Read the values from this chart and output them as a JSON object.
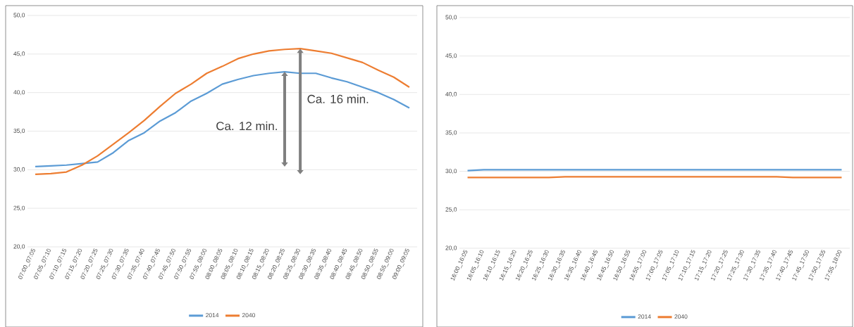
{
  "chart_data": [
    {
      "type": "line",
      "categories": [
        "07:00_07:05",
        "07:05_07:10",
        "07:10_07:15",
        "07:15_07:20",
        "07:20_07:25",
        "07:25_07:30",
        "07:30_07:35",
        "07:35_07:40",
        "07:40_07:45",
        "07:45_07:50",
        "07:50_07:55",
        "07:55_08:00",
        "08:00_08:05",
        "08:05_08:10",
        "08:10_08:15",
        "08:15_08:20",
        "08:20_08:25",
        "08:25_08:30",
        "08:30_08:35",
        "08:35_08:40",
        "08:40_08:45",
        "08:45_08:50",
        "08:50_08:55",
        "08:55_09:00",
        "09:00_09:05"
      ],
      "series": [
        {
          "name": "2014",
          "color": "#5b9bd5",
          "values": [
            30.4,
            30.5,
            30.6,
            30.8,
            31.0,
            32.2,
            33.8,
            34.8,
            36.3,
            37.4,
            38.9,
            39.9,
            41.1,
            41.7,
            42.2,
            42.5,
            42.7,
            42.5,
            42.5,
            41.9,
            41.4,
            40.7,
            40.0,
            39.1,
            38.0
          ]
        },
        {
          "name": "2040",
          "color": "#ed7d31",
          "values": [
            29.4,
            29.5,
            29.7,
            30.6,
            31.8,
            33.3,
            34.8,
            36.4,
            38.2,
            39.9,
            41.1,
            42.5,
            43.4,
            44.4,
            45.0,
            45.4,
            45.6,
            45.7,
            45.4,
            45.1,
            44.5,
            43.9,
            42.9,
            42.0,
            40.7
          ]
        }
      ],
      "ylim": [
        20,
        50
      ],
      "yticks": [
        {
          "value": 20,
          "label": "20,0"
        },
        {
          "value": 25,
          "label": "25,0"
        },
        {
          "value": 30,
          "label": "30,0"
        },
        {
          "value": 35,
          "label": "35,0"
        },
        {
          "value": 40,
          "label": "40,0"
        },
        {
          "value": 45,
          "label": "45,0"
        },
        {
          "value": 50,
          "label": "50,0"
        }
      ],
      "grid": "y",
      "legend": "bottom",
      "marker": "none",
      "line_style": "solid",
      "annotations": [
        "Ca. 12 min.",
        "Ca. 16 min."
      ]
    },
    {
      "type": "line",
      "categories": [
        "16:00_16:05",
        "16:05_16:10",
        "16:10_16:15",
        "16:15_16:20",
        "16:20_16:25",
        "16:25_16:30",
        "16:30_16:35",
        "16:35_16:40",
        "16:40_16:45",
        "16:45_16:50",
        "16:50_16:55",
        "16:55_17:00",
        "17:00_17:05",
        "17:05_17:10",
        "17:10_17:15",
        "17:15_17:20",
        "17:20_17:25",
        "17:25_17:30",
        "17:30_17:35",
        "17:35_17:40",
        "17:40_17:45",
        "17:45_17:50",
        "17:50_17:55",
        "17:55_18:00"
      ],
      "series": [
        {
          "name": "2014",
          "color": "#5b9bd5",
          "values": [
            30.1,
            30.2,
            30.2,
            30.2,
            30.2,
            30.2,
            30.2,
            30.2,
            30.2,
            30.2,
            30.2,
            30.2,
            30.2,
            30.2,
            30.2,
            30.2,
            30.2,
            30.2,
            30.2,
            30.2,
            30.2,
            30.2,
            30.2,
            30.2
          ]
        },
        {
          "name": "2040",
          "color": "#ed7d31",
          "values": [
            29.2,
            29.2,
            29.2,
            29.2,
            29.2,
            29.2,
            29.3,
            29.3,
            29.3,
            29.3,
            29.3,
            29.3,
            29.3,
            29.3,
            29.3,
            29.3,
            29.3,
            29.3,
            29.3,
            29.3,
            29.2,
            29.2,
            29.2,
            29.2
          ]
        }
      ],
      "ylim": [
        20,
        50
      ],
      "yticks": [
        {
          "value": 20,
          "label": "20,0"
        },
        {
          "value": 25,
          "label": "25,0"
        },
        {
          "value": 30,
          "label": "30,0"
        },
        {
          "value": 35,
          "label": "35,0"
        },
        {
          "value": 40,
          "label": "40,0"
        },
        {
          "value": 45,
          "label": "45,0"
        },
        {
          "value": 50,
          "label": "50,0"
        }
      ],
      "grid": "y",
      "legend": "bottom",
      "marker": "none",
      "line_style": "solid"
    }
  ]
}
